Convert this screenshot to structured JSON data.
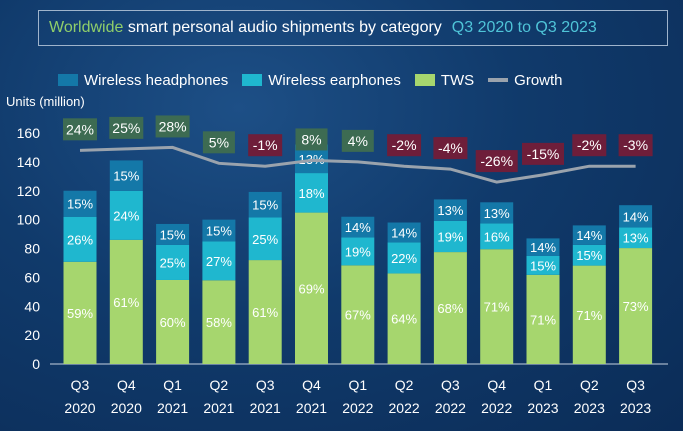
{
  "chart_data": {
    "type": "bar",
    "title_parts": {
      "highlight": "Worldwide",
      "main": "smart personal audio shipments by category",
      "range": "Q3 2020 to Q3 2023"
    },
    "ylabel": "Units (million)",
    "ylim": [
      0,
      160
    ],
    "yticks": [
      0,
      20,
      40,
      60,
      80,
      100,
      120,
      140,
      160
    ],
    "stacked": true,
    "legend_position": "top",
    "categories": [
      [
        "Q3",
        "2020"
      ],
      [
        "Q4",
        "2020"
      ],
      [
        "Q1",
        "2021"
      ],
      [
        "Q2",
        "2021"
      ],
      [
        "Q3",
        "2021"
      ],
      [
        "Q4",
        "2021"
      ],
      [
        "Q1",
        "2022"
      ],
      [
        "Q2",
        "2022"
      ],
      [
        "Q3",
        "2022"
      ],
      [
        "Q4",
        "2022"
      ],
      [
        "Q1",
        "2023"
      ],
      [
        "Q2",
        "2023"
      ],
      [
        "Q3",
        "2023"
      ]
    ],
    "totals": [
      120,
      141,
      97,
      100,
      118,
      152,
      102,
      98,
      114,
      112,
      87,
      96,
      110
    ],
    "series": [
      {
        "name": "TWS",
        "color": "#a6d66e",
        "share_labels": [
          "59%",
          "61%",
          "60%",
          "58%",
          "61%",
          "69%",
          "67%",
          "64%",
          "68%",
          "71%",
          "71%",
          "71%",
          "73%"
        ],
        "share": [
          59,
          61,
          60,
          58,
          61,
          69,
          67,
          64,
          68,
          71,
          71,
          71,
          73
        ]
      },
      {
        "name": "Wireless earphones",
        "color": "#1fb7cf",
        "share_labels": [
          "26%",
          "24%",
          "25%",
          "27%",
          "25%",
          "18%",
          "19%",
          "22%",
          "19%",
          "16%",
          "15%",
          "15%",
          "13%"
        ],
        "share": [
          26,
          24,
          25,
          27,
          25,
          18,
          19,
          22,
          19,
          16,
          15,
          15,
          13
        ]
      },
      {
        "name": "Wireless headphones",
        "color": "#1478a8",
        "share_labels": [
          "15%",
          "15%",
          "15%",
          "15%",
          "15%",
          "13%",
          "14%",
          "14%",
          "13%",
          "13%",
          "14%",
          "14%",
          "14%"
        ],
        "share": [
          15,
          15,
          15,
          15,
          15,
          13,
          14,
          14,
          13,
          13,
          14,
          14,
          14
        ]
      }
    ],
    "growth": {
      "name": "Growth",
      "color": "#9aa3ad",
      "line_values": [
        148,
        149,
        150,
        139,
        137,
        141,
        140,
        137,
        135,
        126,
        131,
        137,
        137
      ],
      "labels": [
        "24%",
        "25%",
        "28%",
        "5%",
        "-1%",
        "8%",
        "4%",
        "-2%",
        "-4%",
        "-26%",
        "-15%",
        "-2%",
        "-3%"
      ],
      "positive_color": "#3d6b52",
      "negative_color": "#6e1e3a"
    }
  }
}
